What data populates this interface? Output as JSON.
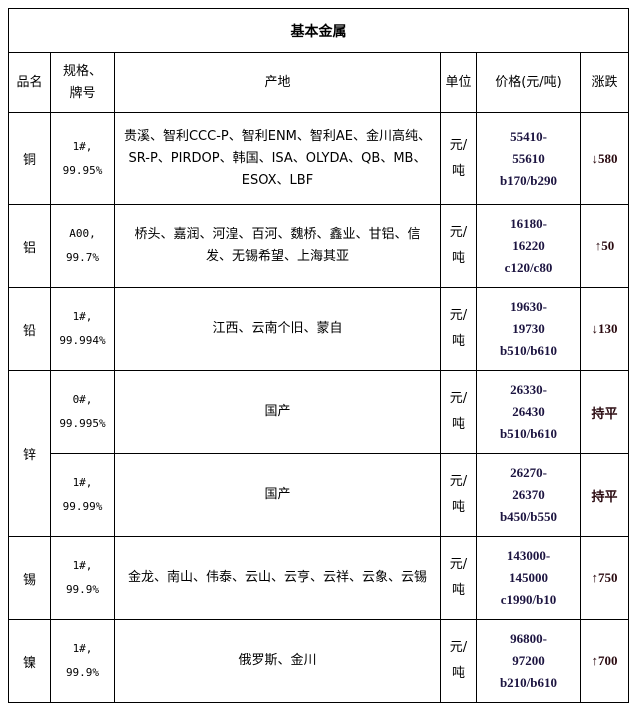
{
  "title": "基本金属",
  "headers": {
    "name": "品名",
    "spec": "规格、牌号",
    "origin": "产地",
    "unit": "单位",
    "price": "价格(元/吨)",
    "change": "涨跌"
  },
  "rows": [
    {
      "name": "铜",
      "spec1": "1#,",
      "spec2": "99.95%",
      "origin": "贵溪、智利CCC-P、智利ENM、智利AE、金川高纯、SR-P、PIRDOP、韩国、ISA、OLYDA、QB、MB、ESOX、LBF",
      "unit1": "元/",
      "unit2": "吨",
      "p1": "55410-",
      "p2": "55610",
      "p3": "b170/b290",
      "change": "↓580",
      "dir": "down"
    },
    {
      "name": "铝",
      "spec1": "A00,",
      "spec2": "99.7%",
      "origin": "桥头、嘉润、河湟、百河、魏桥、鑫业、甘铝、信发、无锡希望、上海其亚",
      "unit1": "元/",
      "unit2": "吨",
      "p1": "16180-",
      "p2": "16220",
      "p3": "c120/c80",
      "change": "↑50",
      "dir": "up"
    },
    {
      "name": "铅",
      "spec1": "1#,",
      "spec2": "99.994%",
      "origin": "江西、云南个旧、蒙自",
      "unit1": "元/",
      "unit2": "吨",
      "p1": "19630-",
      "p2": "19730",
      "p3": "b510/b610",
      "change": "↓130",
      "dir": "down"
    },
    {
      "name": "锌",
      "spec1": "0#,",
      "spec2": "99.995%",
      "origin": "国产",
      "unit1": "元/",
      "unit2": "吨",
      "p1": "26330-",
      "p2": "26430",
      "p3": "b510/b610",
      "change": "持平",
      "dir": "flat"
    },
    {
      "name": "",
      "spec1": "1#,",
      "spec2": "99.99%",
      "origin": "国产",
      "unit1": "元/",
      "unit2": "吨",
      "p1": "26270-",
      "p2": "26370",
      "p3": "b450/b550",
      "change": "持平",
      "dir": "flat"
    },
    {
      "name": "锡",
      "spec1": "1#,",
      "spec2": "99.9%",
      "origin": "金龙、南山、伟泰、云山、云亨、云祥、云象、云锡",
      "unit1": "元/",
      "unit2": "吨",
      "p1": "143000-",
      "p2": "145000",
      "p3": "c1990/b10",
      "change": "↑750",
      "dir": "up"
    },
    {
      "name": "镍",
      "spec1": "1#,",
      "spec2": "99.9%",
      "origin": "俄罗斯、金川",
      "unit1": "元/",
      "unit2": "吨",
      "p1": "96800-",
      "p2": "97200",
      "p3": "b210/b610",
      "change": "↑700",
      "dir": "up"
    }
  ]
}
